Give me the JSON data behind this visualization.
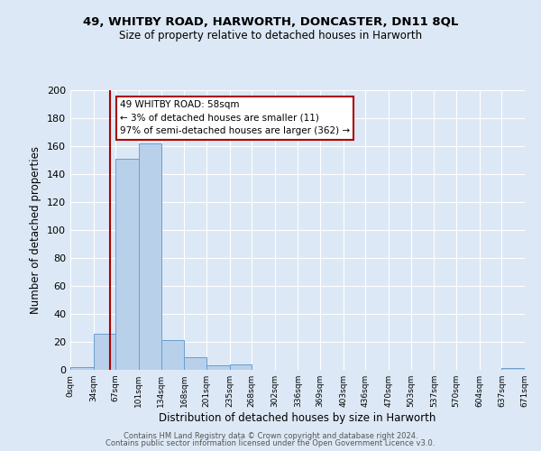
{
  "title_line1": "49, WHITBY ROAD, HARWORTH, DONCASTER, DN11 8QL",
  "title_line2": "Size of property relative to detached houses in Harworth",
  "xlabel": "Distribution of detached houses by size in Harworth",
  "ylabel": "Number of detached properties",
  "bin_edges": [
    0,
    34,
    67,
    101,
    134,
    168,
    201,
    235,
    268,
    302,
    336,
    369,
    403,
    436,
    470,
    503,
    537,
    570,
    604,
    637,
    671
  ],
  "bin_counts": [
    2,
    26,
    151,
    162,
    21,
    9,
    3,
    4,
    0,
    0,
    0,
    0,
    0,
    0,
    0,
    0,
    0,
    0,
    0,
    1
  ],
  "bar_color": "#b8d0ea",
  "bar_edge_color": "#6a9fd0",
  "property_size": 58,
  "vline_color": "#aa0000",
  "annotation_text": "49 WHITBY ROAD: 58sqm\n← 3% of detached houses are smaller (11)\n97% of semi-detached houses are larger (362) →",
  "annotation_box_edge_color": "#aa0000",
  "ylim": [
    0,
    200
  ],
  "yticks": [
    0,
    20,
    40,
    60,
    80,
    100,
    120,
    140,
    160,
    180,
    200
  ],
  "tick_labels": [
    "0sqm",
    "34sqm",
    "67sqm",
    "101sqm",
    "134sqm",
    "168sqm",
    "201sqm",
    "235sqm",
    "268sqm",
    "302sqm",
    "336sqm",
    "369sqm",
    "403sqm",
    "436sqm",
    "470sqm",
    "503sqm",
    "537sqm",
    "570sqm",
    "604sqm",
    "637sqm",
    "671sqm"
  ],
  "footer_line1": "Contains HM Land Registry data © Crown copyright and database right 2024.",
  "footer_line2": "Contains public sector information licensed under the Open Government Licence v3.0.",
  "background_color": "#dce8f5",
  "plot_bg_color": "#dce8f5",
  "grid_color": "#ffffff"
}
